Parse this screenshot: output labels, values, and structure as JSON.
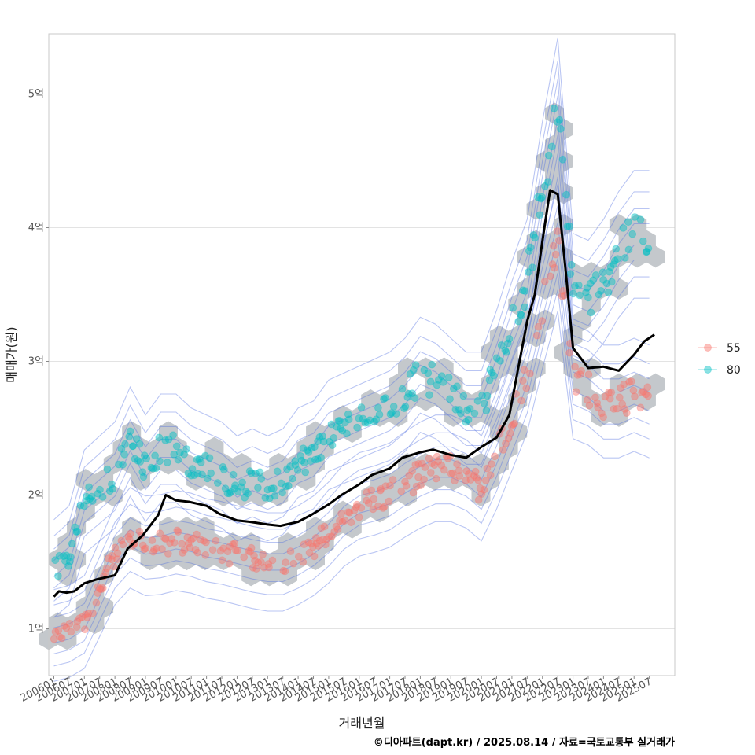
{
  "chart_data": {
    "type": "scatter",
    "title": "",
    "xlabel": "거래년월",
    "ylabel": "매매가(원)",
    "caption": "©디아파트(dapt.kr) / 2025.08.14 / 자료=국토교통부 실거래가",
    "x_range": [
      "2005-11",
      "2026-05"
    ],
    "ylim": [
      0.65,
      5.45
    ],
    "grid": true,
    "legend_position": "right",
    "y_ticks": [
      {
        "value": 1,
        "label": "1억"
      },
      {
        "value": 2,
        "label": "2억"
      },
      {
        "value": 3,
        "label": "3억"
      },
      {
        "value": 4,
        "label": "4억"
      },
      {
        "value": 5,
        "label": "5억"
      }
    ],
    "x_tick_labels": [
      "200601",
      "200607",
      "200701",
      "200707",
      "200801",
      "200807",
      "200901",
      "200907",
      "201001",
      "201007",
      "201101",
      "201107",
      "201201",
      "201207",
      "201301",
      "201307",
      "201401",
      "201407",
      "201501",
      "201507",
      "201601",
      "201607",
      "201701",
      "201707",
      "201801",
      "201807",
      "201901",
      "201907",
      "202001",
      "202007",
      "202101",
      "202107",
      "202201",
      "202207",
      "202301",
      "202307",
      "202401",
      "202407",
      "202501",
      "202507"
    ],
    "series": [
      {
        "name": "55",
        "color": "#F8766D",
        "trend": [
          [
            "2006-01",
            0.95
          ],
          [
            "2006-07",
            0.98
          ],
          [
            "2007-01",
            1.05
          ],
          [
            "2007-07",
            1.3
          ],
          [
            "2008-01",
            1.55
          ],
          [
            "2008-07",
            1.68
          ],
          [
            "2009-01",
            1.62
          ],
          [
            "2009-07",
            1.63
          ],
          [
            "2010-01",
            1.66
          ],
          [
            "2010-07",
            1.64
          ],
          [
            "2011-01",
            1.6
          ],
          [
            "2011-07",
            1.58
          ],
          [
            "2012-01",
            1.55
          ],
          [
            "2012-07",
            1.52
          ],
          [
            "2013-01",
            1.5
          ],
          [
            "2013-07",
            1.5
          ],
          [
            "2014-01",
            1.55
          ],
          [
            "2014-07",
            1.62
          ],
          [
            "2015-01",
            1.72
          ],
          [
            "2015-07",
            1.85
          ],
          [
            "2016-01",
            1.93
          ],
          [
            "2016-07",
            1.96
          ],
          [
            "2017-01",
            2.0
          ],
          [
            "2017-07",
            2.08
          ],
          [
            "2018-01",
            2.15
          ],
          [
            "2018-07",
            2.2
          ],
          [
            "2019-01",
            2.2
          ],
          [
            "2019-07",
            2.15
          ],
          [
            "2020-01",
            2.05
          ],
          [
            "2020-07",
            2.3
          ],
          [
            "2021-01",
            2.6
          ],
          [
            "2021-07",
            2.9
          ],
          [
            "2022-01",
            3.4
          ],
          [
            "2022-07",
            3.85
          ],
          [
            "2023-01",
            2.85
          ],
          [
            "2023-07",
            2.8
          ],
          [
            "2024-01",
            2.7
          ],
          [
            "2024-07",
            2.7
          ],
          [
            "2025-01",
            2.75
          ],
          [
            "2025-07",
            2.7
          ]
        ]
      },
      {
        "name": "80",
        "color": "#00BFC4",
        "trend": [
          [
            "2006-01",
            1.45
          ],
          [
            "2006-07",
            1.55
          ],
          [
            "2007-01",
            1.95
          ],
          [
            "2007-07",
            2.05
          ],
          [
            "2008-01",
            2.15
          ],
          [
            "2008-07",
            2.4
          ],
          [
            "2009-01",
            2.2
          ],
          [
            "2009-07",
            2.35
          ],
          [
            "2010-01",
            2.35
          ],
          [
            "2010-07",
            2.25
          ],
          [
            "2011-01",
            2.2
          ],
          [
            "2011-07",
            2.15
          ],
          [
            "2012-01",
            2.05
          ],
          [
            "2012-07",
            2.1
          ],
          [
            "2013-01",
            2.05
          ],
          [
            "2013-07",
            2.1
          ],
          [
            "2014-01",
            2.25
          ],
          [
            "2014-07",
            2.3
          ],
          [
            "2015-01",
            2.45
          ],
          [
            "2015-07",
            2.5
          ],
          [
            "2016-01",
            2.55
          ],
          [
            "2016-07",
            2.6
          ],
          [
            "2017-01",
            2.65
          ],
          [
            "2017-07",
            2.75
          ],
          [
            "2018-01",
            2.9
          ],
          [
            "2018-07",
            2.85
          ],
          [
            "2019-01",
            2.75
          ],
          [
            "2019-07",
            2.65
          ],
          [
            "2020-01",
            2.65
          ],
          [
            "2020-07",
            2.95
          ],
          [
            "2021-01",
            3.3
          ],
          [
            "2021-07",
            3.6
          ],
          [
            "2022-01",
            4.3
          ],
          [
            "2022-07",
            4.9
          ],
          [
            "2023-01",
            3.5
          ],
          [
            "2023-07",
            3.45
          ],
          [
            "2024-01",
            3.6
          ],
          [
            "2024-07",
            3.8
          ],
          [
            "2025-01",
            3.95
          ],
          [
            "2025-07",
            3.95
          ]
        ]
      },
      {
        "name": "",
        "color": "#000000",
        "kind": "line",
        "points": [
          [
            "2006-01",
            1.24
          ],
          [
            "2006-03",
            1.28
          ],
          [
            "2006-06",
            1.27
          ],
          [
            "2006-09",
            1.28
          ],
          [
            "2007-01",
            1.34
          ],
          [
            "2007-06",
            1.37
          ],
          [
            "2008-01",
            1.4
          ],
          [
            "2008-06",
            1.6
          ],
          [
            "2008-12",
            1.7
          ],
          [
            "2009-06",
            1.85
          ],
          [
            "2009-09",
            2.0
          ],
          [
            "2010-01",
            1.96
          ],
          [
            "2010-06",
            1.95
          ],
          [
            "2011-01",
            1.92
          ],
          [
            "2011-06",
            1.86
          ],
          [
            "2012-01",
            1.81
          ],
          [
            "2012-06",
            1.8
          ],
          [
            "2013-01",
            1.78
          ],
          [
            "2013-06",
            1.77
          ],
          [
            "2014-01",
            1.8
          ],
          [
            "2014-06",
            1.85
          ],
          [
            "2015-01",
            1.93
          ],
          [
            "2015-06",
            2.0
          ],
          [
            "2016-01",
            2.08
          ],
          [
            "2016-06",
            2.15
          ],
          [
            "2017-01",
            2.2
          ],
          [
            "2017-06",
            2.28
          ],
          [
            "2018-01",
            2.32
          ],
          [
            "2018-06",
            2.34
          ],
          [
            "2019-01",
            2.3
          ],
          [
            "2019-07",
            2.28
          ],
          [
            "2020-01",
            2.36
          ],
          [
            "2020-07",
            2.43
          ],
          [
            "2020-12",
            2.6
          ],
          [
            "2021-04",
            3.0
          ],
          [
            "2021-07",
            3.3
          ],
          [
            "2021-10",
            3.5
          ],
          [
            "2022-01",
            3.9
          ],
          [
            "2022-04",
            4.28
          ],
          [
            "2022-07",
            4.25
          ],
          [
            "2022-10",
            3.7
          ],
          [
            "2023-01",
            3.1
          ],
          [
            "2023-07",
            2.95
          ],
          [
            "2024-01",
            2.96
          ],
          [
            "2024-07",
            2.93
          ],
          [
            "2025-01",
            3.05
          ],
          [
            "2025-05",
            3.15
          ],
          [
            "2025-09",
            3.2
          ]
        ]
      }
    ],
    "legend_entries": [
      "55",
      "80"
    ]
  }
}
